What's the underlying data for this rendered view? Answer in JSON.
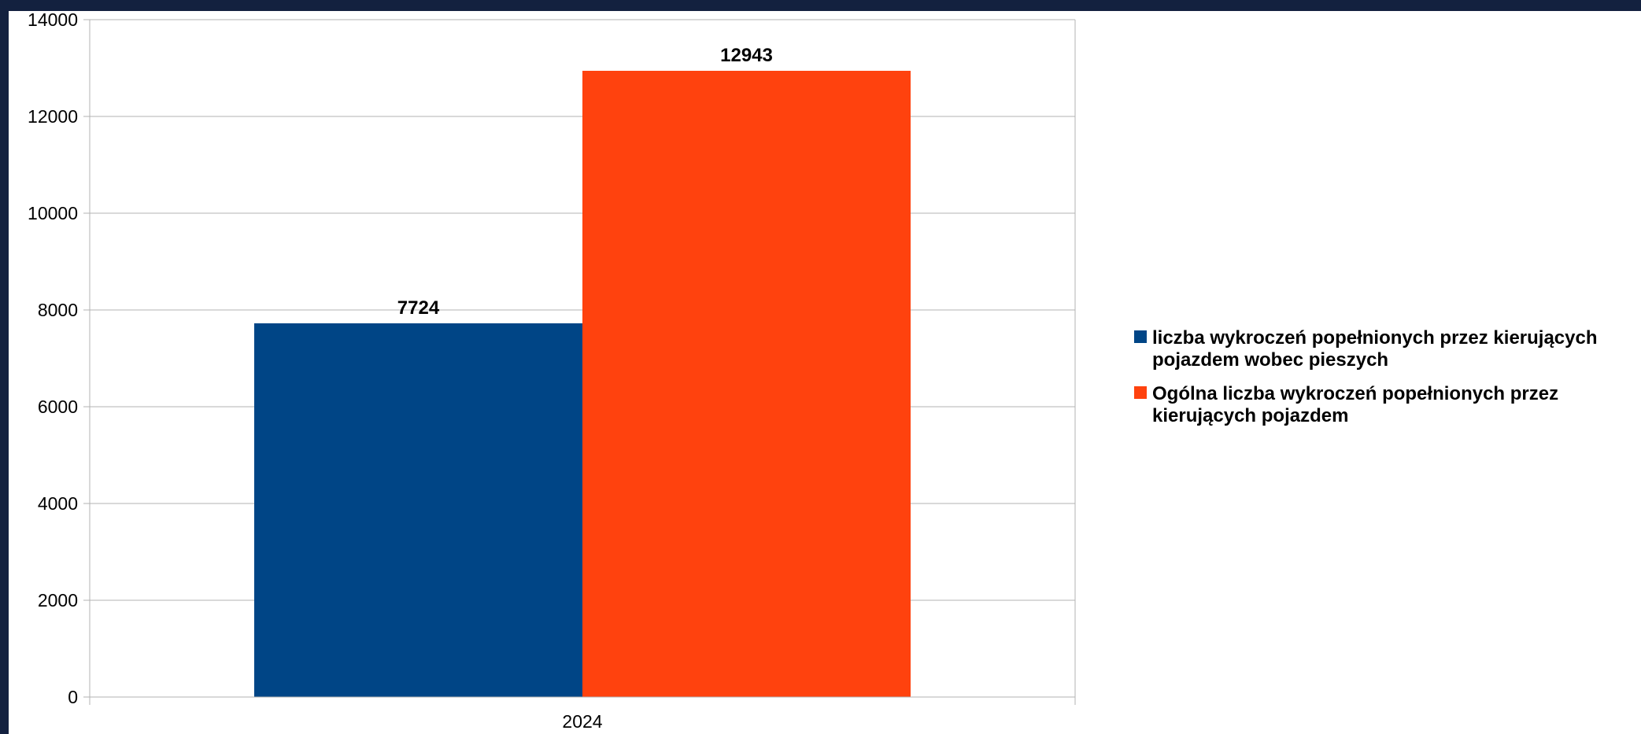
{
  "chart_data": {
    "type": "bar",
    "categories": [
      "2024"
    ],
    "series": [
      {
        "name": "liczba wykroczeń popełnionych przez kierujących pojazdem wobec pieszych",
        "values": [
          7724
        ],
        "color": "#004586"
      },
      {
        "name": "Ogólna liczba wykroczeń popełnionych przez kierujących pojazdem",
        "values": [
          12943
        ],
        "color": "#ff420e"
      }
    ],
    "data_labels": [
      "7724",
      "12943"
    ],
    "yticks": [
      "0",
      "2000",
      "4000",
      "6000",
      "8000",
      "10000",
      "12000",
      "14000"
    ],
    "ylim": [
      0,
      14000
    ],
    "grid": true,
    "legend_position": "right",
    "title": "",
    "xlabel": "",
    "ylabel": ""
  },
  "legend": {
    "items": [
      {
        "line1": "liczba wykroczeń popełnionych przez kierujących",
        "line2": "pojazdem wobec pieszych"
      },
      {
        "line1": "Ogólna liczba wykroczeń popełnionych przez",
        "line2": "kierujących pojazdem"
      }
    ]
  }
}
